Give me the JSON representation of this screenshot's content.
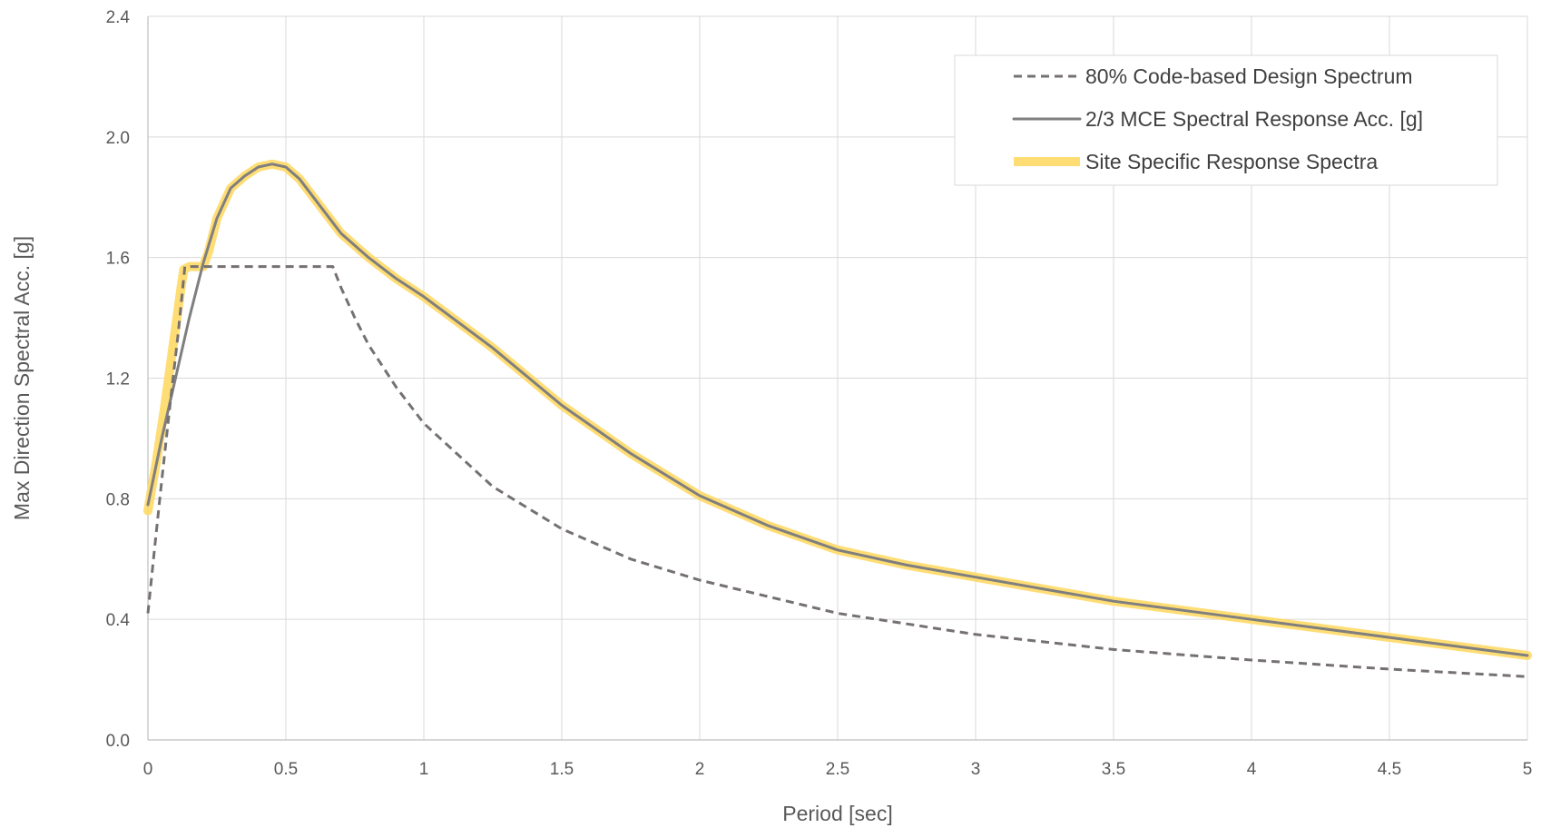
{
  "chart_data": {
    "type": "line",
    "title": "",
    "xlabel": "Period [sec]",
    "ylabel": "Max Direction Spectral Acc. [g]",
    "xlim": [
      0,
      5
    ],
    "ylim": [
      0,
      2.4
    ],
    "x_ticks": [
      "0",
      "0.5",
      "1",
      "1.5",
      "2",
      "2.5",
      "3",
      "3.5",
      "4",
      "4.5",
      "5"
    ],
    "y_ticks": [
      "0.0",
      "0.4",
      "0.8",
      "1.2",
      "1.6",
      "2.0",
      "2.4"
    ],
    "grid": true,
    "legend_position": "top-right",
    "series": [
      {
        "name": "80% Code-based Design Spectrum",
        "style": "dashed",
        "color": "#767171",
        "points": [
          [
            0,
            0.42
          ],
          [
            0.02,
            0.6
          ],
          [
            0.05,
            0.86
          ],
          [
            0.08,
            1.11
          ],
          [
            0.11,
            1.35
          ],
          [
            0.134,
            1.57
          ],
          [
            0.2,
            1.57
          ],
          [
            0.3,
            1.57
          ],
          [
            0.4,
            1.57
          ],
          [
            0.5,
            1.57
          ],
          [
            0.6,
            1.57
          ],
          [
            0.67,
            1.57
          ],
          [
            0.7,
            1.5
          ],
          [
            0.75,
            1.4
          ],
          [
            0.8,
            1.31
          ],
          [
            0.9,
            1.17
          ],
          [
            1.0,
            1.05
          ],
          [
            1.25,
            0.84
          ],
          [
            1.5,
            0.7
          ],
          [
            1.75,
            0.6
          ],
          [
            2.0,
            0.53
          ],
          [
            2.5,
            0.42
          ],
          [
            3.0,
            0.35
          ],
          [
            3.5,
            0.3
          ],
          [
            4.0,
            0.265
          ],
          [
            4.5,
            0.235
          ],
          [
            5.0,
            0.21
          ]
        ]
      },
      {
        "name": "2/3 MCE Spectral Response Acc. [g]",
        "style": "solid",
        "color": "#7f7f7f",
        "points": [
          [
            0,
            0.78
          ],
          [
            0.05,
            1.0
          ],
          [
            0.1,
            1.2
          ],
          [
            0.15,
            1.4
          ],
          [
            0.2,
            1.58
          ],
          [
            0.25,
            1.73
          ],
          [
            0.3,
            1.83
          ],
          [
            0.35,
            1.87
          ],
          [
            0.4,
            1.9
          ],
          [
            0.45,
            1.91
          ],
          [
            0.5,
            1.9
          ],
          [
            0.55,
            1.86
          ],
          [
            0.6,
            1.8
          ],
          [
            0.65,
            1.74
          ],
          [
            0.7,
            1.68
          ],
          [
            0.8,
            1.6
          ],
          [
            0.9,
            1.53
          ],
          [
            1.0,
            1.47
          ],
          [
            1.25,
            1.3
          ],
          [
            1.5,
            1.11
          ],
          [
            1.75,
            0.95
          ],
          [
            2.0,
            0.81
          ],
          [
            2.25,
            0.71
          ],
          [
            2.5,
            0.63
          ],
          [
            2.75,
            0.58
          ],
          [
            3.0,
            0.54
          ],
          [
            3.25,
            0.5
          ],
          [
            3.5,
            0.46
          ],
          [
            3.75,
            0.43
          ],
          [
            4.0,
            0.4
          ],
          [
            4.25,
            0.37
          ],
          [
            4.5,
            0.34
          ],
          [
            4.75,
            0.31
          ],
          [
            5.0,
            0.28
          ]
        ]
      },
      {
        "name": "Site Specific Response Spectra",
        "style": "thick",
        "color": "#ffd966",
        "points": [
          [
            0,
            0.76
          ],
          [
            0.03,
            0.92
          ],
          [
            0.06,
            1.1
          ],
          [
            0.09,
            1.3
          ],
          [
            0.12,
            1.5
          ],
          [
            0.13,
            1.56
          ],
          [
            0.15,
            1.57
          ],
          [
            0.2,
            1.57
          ],
          [
            0.22,
            1.62
          ],
          [
            0.25,
            1.73
          ],
          [
            0.3,
            1.83
          ],
          [
            0.35,
            1.87
          ],
          [
            0.4,
            1.9
          ],
          [
            0.45,
            1.91
          ],
          [
            0.5,
            1.9
          ],
          [
            0.55,
            1.86
          ],
          [
            0.6,
            1.8
          ],
          [
            0.65,
            1.74
          ],
          [
            0.7,
            1.68
          ],
          [
            0.8,
            1.6
          ],
          [
            0.9,
            1.53
          ],
          [
            1.0,
            1.47
          ],
          [
            1.25,
            1.3
          ],
          [
            1.5,
            1.11
          ],
          [
            1.75,
            0.95
          ],
          [
            2.0,
            0.81
          ],
          [
            2.25,
            0.71
          ],
          [
            2.5,
            0.63
          ],
          [
            2.75,
            0.58
          ],
          [
            3.0,
            0.54
          ],
          [
            3.25,
            0.5
          ],
          [
            3.5,
            0.46
          ],
          [
            3.75,
            0.43
          ],
          [
            4.0,
            0.4
          ],
          [
            4.25,
            0.37
          ],
          [
            4.5,
            0.34
          ],
          [
            4.75,
            0.31
          ],
          [
            5.0,
            0.28
          ]
        ]
      }
    ]
  }
}
